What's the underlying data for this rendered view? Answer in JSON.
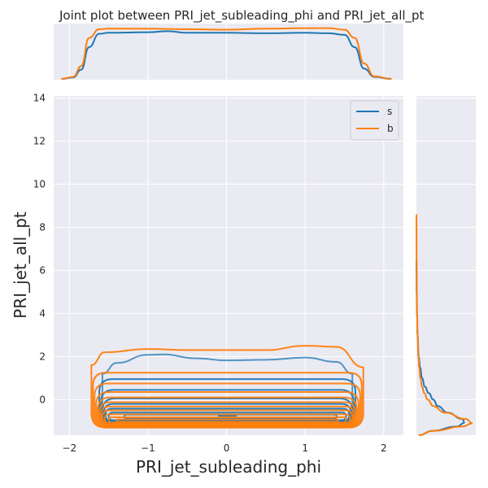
{
  "chart_data": {
    "type": "kde-joint",
    "title": "Joint plot between PRI_jet_subleading_phi and PRI_jet_all_pt",
    "xlabel": "PRI_jet_subleading_phi",
    "ylabel": "PRI_jet_all_pt",
    "xlim": [
      -2.2,
      2.25
    ],
    "ylim": [
      -1.65,
      14.1
    ],
    "xticks": [
      -2,
      -1,
      0,
      1,
      2
    ],
    "xtick_labels": [
      "−2",
      "−1",
      "0",
      "1",
      "2"
    ],
    "yticks": [
      0,
      2,
      4,
      6,
      8,
      10,
      12,
      14
    ],
    "ytick_labels": [
      "0",
      "2",
      "4",
      "6",
      "8",
      "10",
      "12",
      "14"
    ],
    "grid": true,
    "legend": {
      "placement": "top-right",
      "entries": [
        "s",
        "b"
      ]
    },
    "series": [
      {
        "name": "s",
        "color": "#1f77b4",
        "contour_levels": [
          {
            "x0": -1.58,
            "x1": 1.6,
            "y_low": -1.12,
            "y_high_profile": [
              [
                -1.58,
                1.2
              ],
              [
                -1.4,
                1.7
              ],
              [
                -1.0,
                2.08
              ],
              [
                -0.8,
                2.1
              ],
              [
                -0.4,
                1.92
              ],
              [
                0.0,
                1.82
              ],
              [
                0.5,
                1.85
              ],
              [
                1.0,
                1.95
              ],
              [
                1.4,
                1.75
              ],
              [
                1.6,
                1.2
              ]
            ]
          },
          {
            "x0": -1.62,
            "x1": 1.64,
            "y_low": -1.2,
            "y_high": 0.95
          },
          {
            "x0": -1.6,
            "x1": 1.62,
            "y_low": -1.15,
            "y_high": 0.45
          },
          {
            "x0": -1.58,
            "x1": 1.6,
            "y_low": -1.1,
            "y_high": 0.05
          },
          {
            "x0": -1.56,
            "x1": 1.58,
            "y_low": -1.05,
            "y_high": -0.2
          },
          {
            "x0": -1.54,
            "x1": 1.56,
            "y_low": -1.0,
            "y_high": -0.42
          },
          {
            "x0": -1.5,
            "x1": 1.52,
            "y_low": -0.95,
            "y_high": -0.6
          },
          {
            "x0": -1.3,
            "x1": 1.4,
            "y_low": -0.88,
            "y_high": -0.7
          },
          {
            "x0": -0.1,
            "x1": 0.12,
            "y_low": -0.78,
            "y_high": -0.7
          }
        ],
        "marginal_x": [
          [
            -2.1,
            0.0
          ],
          [
            -1.95,
            0.03
          ],
          [
            -1.85,
            0.18
          ],
          [
            -1.75,
            0.62
          ],
          [
            -1.62,
            0.88
          ],
          [
            -1.5,
            0.9
          ],
          [
            -1.0,
            0.91
          ],
          [
            -0.75,
            0.93
          ],
          [
            -0.5,
            0.9
          ],
          [
            0.0,
            0.9
          ],
          [
            0.5,
            0.89
          ],
          [
            1.0,
            0.9
          ],
          [
            1.3,
            0.89
          ],
          [
            1.5,
            0.86
          ],
          [
            1.63,
            0.62
          ],
          [
            1.75,
            0.2
          ],
          [
            1.88,
            0.04
          ],
          [
            2.1,
            0.0
          ]
        ],
        "marginal_y": [
          [
            -1.65,
            0.05
          ],
          [
            -1.45,
            0.28
          ],
          [
            -1.25,
            0.72
          ],
          [
            -1.08,
            0.86
          ],
          [
            -0.9,
            0.82
          ],
          [
            -0.6,
            0.55
          ],
          [
            -0.3,
            0.38
          ],
          [
            0.0,
            0.3
          ],
          [
            0.3,
            0.22
          ],
          [
            0.6,
            0.15
          ],
          [
            1.0,
            0.1
          ],
          [
            1.5,
            0.065
          ],
          [
            2.0,
            0.04
          ],
          [
            3.0,
            0.02
          ],
          [
            4.0,
            0.01
          ],
          [
            5.0,
            0.004
          ],
          [
            6.5,
            0.0
          ]
        ]
      },
      {
        "name": "b",
        "color": "#ff7f0e",
        "contour_levels": [
          {
            "x0": -1.72,
            "x1": 1.74,
            "y_low": -1.3,
            "y_high_profile": [
              [
                -1.72,
                1.6
              ],
              [
                -1.55,
                2.2
              ],
              [
                -1.0,
                2.35
              ],
              [
                -0.5,
                2.3
              ],
              [
                0.0,
                2.3
              ],
              [
                0.5,
                2.3
              ],
              [
                1.0,
                2.5
              ],
              [
                1.4,
                2.45
              ],
              [
                1.74,
                1.5
              ]
            ]
          },
          {
            "x0": -1.7,
            "x1": 1.72,
            "y_low": -1.27,
            "y_high": 1.25
          },
          {
            "x0": -1.68,
            "x1": 1.7,
            "y_low": -1.24,
            "y_high": 0.75
          },
          {
            "x0": -1.66,
            "x1": 1.68,
            "y_low": -1.21,
            "y_high": 0.35
          },
          {
            "x0": -1.64,
            "x1": 1.66,
            "y_low": -1.19,
            "y_high": 0.1
          },
          {
            "x0": -1.62,
            "x1": 1.64,
            "y_low": -1.17,
            "y_high": -0.12
          },
          {
            "x0": -1.6,
            "x1": 1.62,
            "y_low": -1.15,
            "y_high": -0.32
          },
          {
            "x0": -1.58,
            "x1": 1.6,
            "y_low": -1.13,
            "y_high": -0.5
          },
          {
            "x0": -1.55,
            "x1": 1.57,
            "y_low": -1.1,
            "y_high": -0.68
          },
          {
            "x0": -1.5,
            "x1": 1.52,
            "y_low": -1.07,
            "y_high": -0.82
          },
          {
            "x0": -1.4,
            "x1": 1.42,
            "y_low": -1.03,
            "y_high": -0.92
          }
        ],
        "marginal_x": [
          [
            -2.1,
            0.0
          ],
          [
            -1.95,
            0.04
          ],
          [
            -1.85,
            0.25
          ],
          [
            -1.75,
            0.8
          ],
          [
            -1.62,
            0.97
          ],
          [
            -1.5,
            0.98
          ],
          [
            -1.0,
            0.98
          ],
          [
            -0.5,
            0.97
          ],
          [
            0.0,
            0.96
          ],
          [
            0.5,
            0.98
          ],
          [
            1.0,
            0.99
          ],
          [
            1.3,
            0.99
          ],
          [
            1.5,
            0.96
          ],
          [
            1.63,
            0.8
          ],
          [
            1.75,
            0.3
          ],
          [
            1.88,
            0.05
          ],
          [
            2.1,
            0.0
          ]
        ],
        "marginal_y": [
          [
            -1.65,
            0.04
          ],
          [
            -1.45,
            0.3
          ],
          [
            -1.25,
            0.82
          ],
          [
            -1.1,
            1.0
          ],
          [
            -0.9,
            0.88
          ],
          [
            -0.6,
            0.5
          ],
          [
            -0.3,
            0.3
          ],
          [
            0.0,
            0.2
          ],
          [
            0.3,
            0.14
          ],
          [
            0.6,
            0.1
          ],
          [
            1.0,
            0.07
          ],
          [
            1.5,
            0.05
          ],
          [
            2.0,
            0.035
          ],
          [
            3.0,
            0.02
          ],
          [
            4.0,
            0.012
          ],
          [
            5.0,
            0.007
          ],
          [
            6.5,
            0.003
          ],
          [
            8.0,
            0.001
          ],
          [
            8.6,
            0.0
          ]
        ]
      }
    ]
  }
}
